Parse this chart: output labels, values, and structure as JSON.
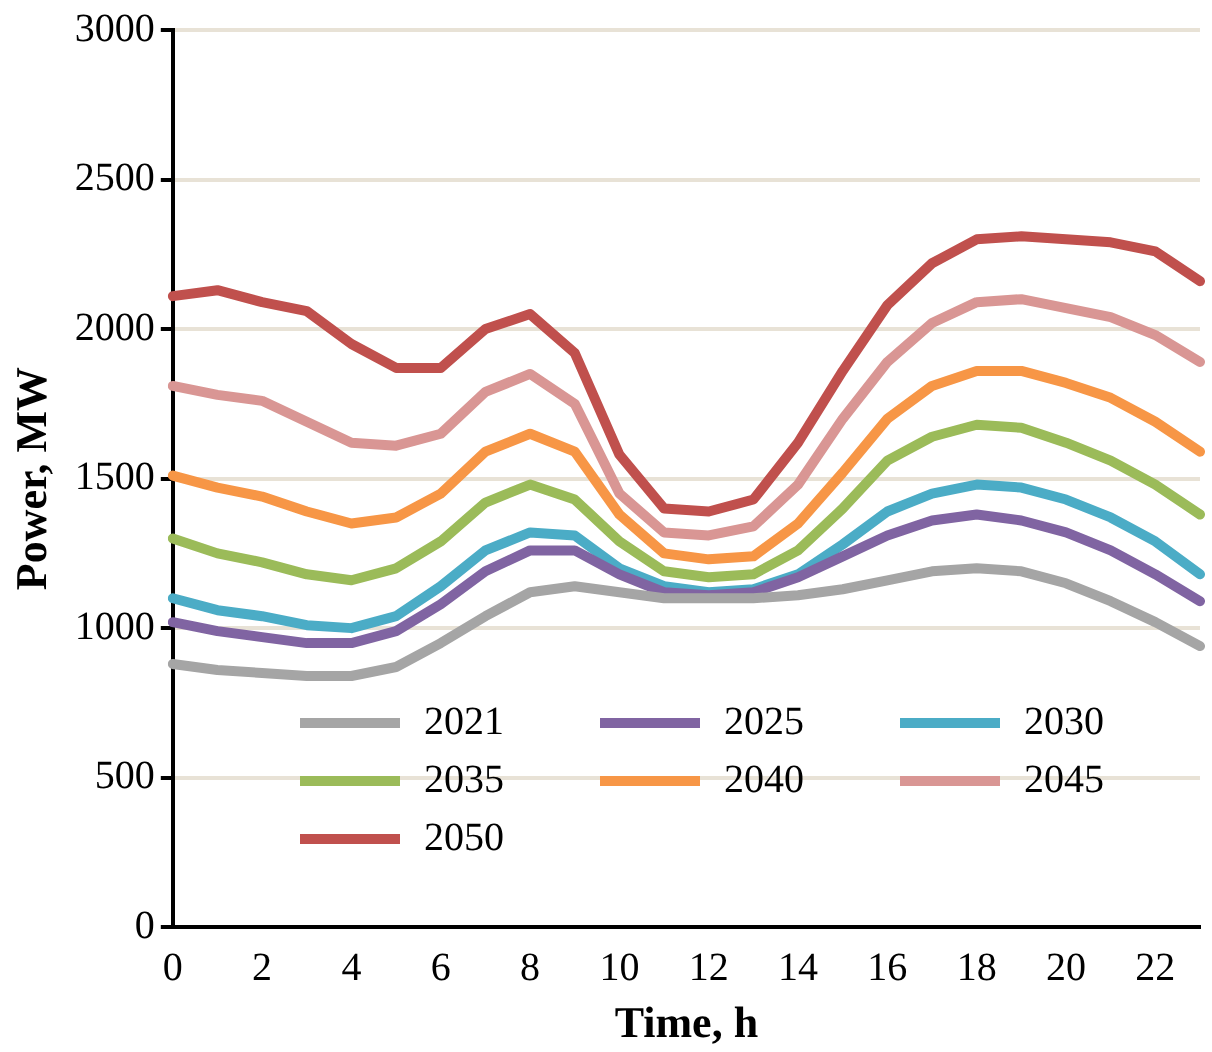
{
  "chart_data": {
    "type": "line",
    "xlabel": "Time, h",
    "ylabel": "Power, MW",
    "categories": [
      "0",
      null,
      "2",
      null,
      "4",
      null,
      "6",
      null,
      "8",
      null,
      "10",
      null,
      "12",
      null,
      "14",
      null,
      "16",
      null,
      "18",
      null,
      "20",
      null,
      "22",
      null
    ],
    "ylim": [
      0,
      3000
    ],
    "yticks": [
      0,
      500,
      1000,
      1500,
      2000,
      2500,
      3000
    ],
    "grid": "y",
    "legend": "bottom",
    "marker": "none",
    "line_style": "solid",
    "series": [
      {
        "name": "2021",
        "color": "#a5a5a5",
        "values": [
          880,
          860,
          850,
          840,
          840,
          870,
          950,
          1040,
          1120,
          1140,
          1120,
          1100,
          1100,
          1100,
          1110,
          1130,
          1160,
          1190,
          1200,
          1190,
          1150,
          1090,
          1020,
          940
        ]
      },
      {
        "name": "2025",
        "color": "#8064a2",
        "values": [
          1020,
          990,
          970,
          950,
          950,
          990,
          1080,
          1190,
          1260,
          1260,
          1180,
          1120,
          1110,
          1120,
          1170,
          1240,
          1310,
          1360,
          1380,
          1360,
          1320,
          1260,
          1180,
          1090
        ]
      },
      {
        "name": "2030",
        "color": "#4bacc6",
        "values": [
          1100,
          1060,
          1040,
          1010,
          1000,
          1040,
          1140,
          1260,
          1320,
          1310,
          1200,
          1140,
          1120,
          1130,
          1180,
          1280,
          1390,
          1450,
          1480,
          1470,
          1430,
          1370,
          1290,
          1180
        ]
      },
      {
        "name": "2035",
        "color": "#9bbb59",
        "values": [
          1300,
          1250,
          1220,
          1180,
          1160,
          1200,
          1290,
          1420,
          1480,
          1430,
          1290,
          1190,
          1170,
          1180,
          1260,
          1400,
          1560,
          1640,
          1680,
          1670,
          1620,
          1560,
          1480,
          1380
        ]
      },
      {
        "name": "2040",
        "color": "#f79646",
        "values": [
          1510,
          1470,
          1440,
          1390,
          1350,
          1370,
          1450,
          1590,
          1650,
          1590,
          1380,
          1250,
          1230,
          1240,
          1350,
          1520,
          1700,
          1810,
          1860,
          1860,
          1820,
          1770,
          1690,
          1590
        ]
      },
      {
        "name": "2045",
        "color": "#d99694",
        "values": [
          1810,
          1780,
          1760,
          1690,
          1620,
          1610,
          1650,
          1790,
          1850,
          1750,
          1450,
          1320,
          1310,
          1340,
          1480,
          1700,
          1890,
          2020,
          2090,
          2100,
          2070,
          2040,
          1980,
          1890
        ]
      },
      {
        "name": "2050",
        "color": "#c0504d",
        "values": [
          2110,
          2130,
          2090,
          2060,
          1950,
          1870,
          1870,
          2000,
          2050,
          1920,
          1580,
          1400,
          1390,
          1430,
          1620,
          1860,
          2080,
          2220,
          2300,
          2310,
          2300,
          2290,
          2260,
          2160
        ]
      }
    ]
  }
}
